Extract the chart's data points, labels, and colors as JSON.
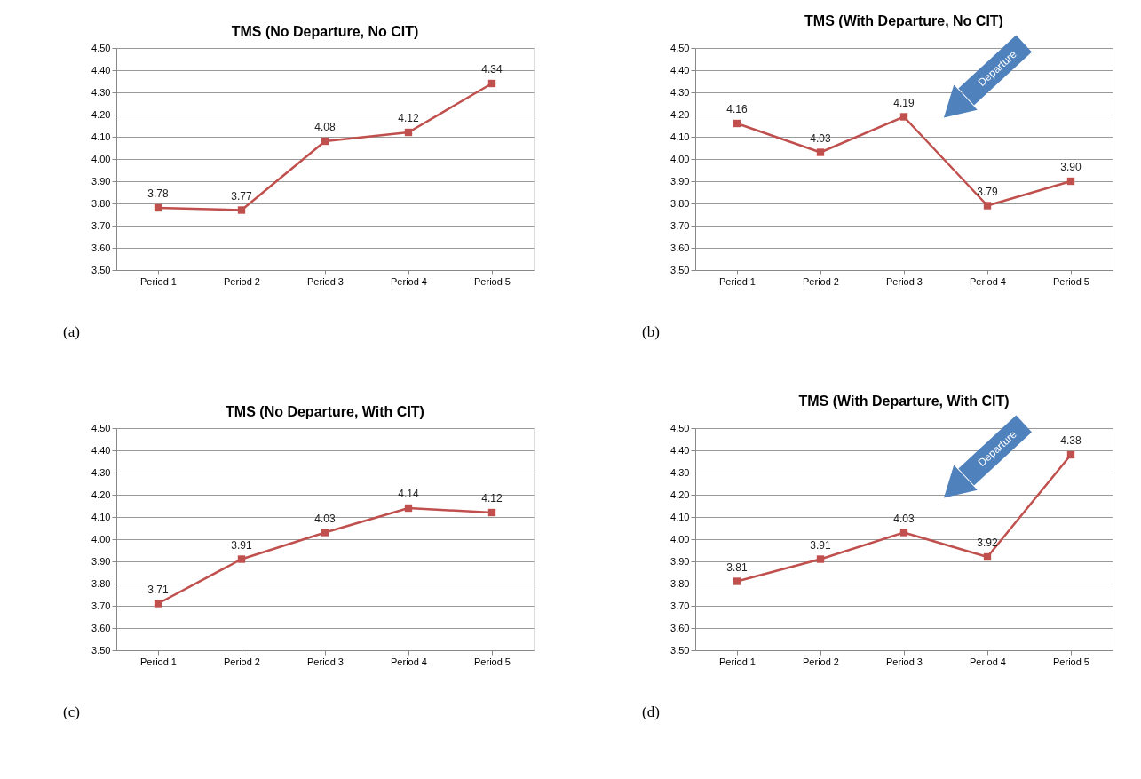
{
  "chart_data": [
    {
      "type": "line",
      "title": "TMS (No Departure, No CIT)",
      "categories": [
        "Period 1",
        "Period 2",
        "Period 3",
        "Period 4",
        "Period 5"
      ],
      "series": [
        {
          "color": "#c0504d",
          "values": [
            3.78,
            3.77,
            4.08,
            4.12,
            4.34
          ],
          "value_labels": [
            "3.78",
            "3.77",
            "4.08",
            "4.12",
            "4.34"
          ]
        }
      ],
      "ylim": [
        3.5,
        4.5
      ],
      "yticks": [
        {
          "value": 3.5,
          "label": "3.50"
        },
        {
          "value": 3.6,
          "label": "3.60"
        },
        {
          "value": 3.7,
          "label": "3.70"
        },
        {
          "value": 3.8,
          "label": "3.80"
        },
        {
          "value": 3.9,
          "label": "3.90"
        },
        {
          "value": 4.0,
          "label": "4.00"
        },
        {
          "value": 4.1,
          "label": "4.10"
        },
        {
          "value": 4.2,
          "label": "4.20"
        },
        {
          "value": 4.3,
          "label": "4.30"
        },
        {
          "value": 4.4,
          "label": "4.40"
        },
        {
          "value": 4.5,
          "label": "4.50"
        }
      ],
      "grid": "y",
      "marker": "square",
      "line_style": "solid",
      "legend": false,
      "annotations": [
        "(a)"
      ]
    },
    {
      "type": "line",
      "title": "TMS (With Departure, No CIT)",
      "categories": [
        "Period 1",
        "Period 2",
        "Period 3",
        "Period 4",
        "Period 5"
      ],
      "series": [
        {
          "color": "#c0504d",
          "values": [
            4.16,
            4.03,
            4.19,
            3.79,
            3.9
          ],
          "value_labels": [
            "4.16",
            "4.03",
            "4.19",
            "3.79",
            "3.90"
          ]
        }
      ],
      "ylim": [
        3.5,
        4.5
      ],
      "yticks": [
        {
          "value": 3.5,
          "label": "3.50"
        },
        {
          "value": 3.6,
          "label": "3.60"
        },
        {
          "value": 3.7,
          "label": "3.70"
        },
        {
          "value": 3.8,
          "label": "3.80"
        },
        {
          "value": 3.9,
          "label": "3.90"
        },
        {
          "value": 4.0,
          "label": "4.00"
        },
        {
          "value": 4.1,
          "label": "4.10"
        },
        {
          "value": 4.2,
          "label": "4.20"
        },
        {
          "value": 4.3,
          "label": "4.30"
        },
        {
          "value": 4.4,
          "label": "4.40"
        },
        {
          "value": 4.5,
          "label": "4.50"
        }
      ],
      "grid": "y",
      "marker": "square",
      "line_style": "solid",
      "legend": false,
      "annotations": [
        "(b)",
        "Departure"
      ]
    },
    {
      "type": "line",
      "title": "TMS (No Departure, With CIT)",
      "categories": [
        "Period 1",
        "Period 2",
        "Period 3",
        "Period 4",
        "Period 5"
      ],
      "series": [
        {
          "color": "#c0504d",
          "values": [
            3.71,
            3.91,
            4.03,
            4.14,
            4.12
          ],
          "value_labels": [
            "3.71",
            "3.91",
            "4.03",
            "4.14",
            "4.12"
          ]
        }
      ],
      "ylim": [
        3.5,
        4.5
      ],
      "yticks": [
        {
          "value": 3.5,
          "label": "3.50"
        },
        {
          "value": 3.6,
          "label": "3.60"
        },
        {
          "value": 3.7,
          "label": "3.70"
        },
        {
          "value": 3.8,
          "label": "3.80"
        },
        {
          "value": 3.9,
          "label": "3.90"
        },
        {
          "value": 4.0,
          "label": "4.00"
        },
        {
          "value": 4.1,
          "label": "4.10"
        },
        {
          "value": 4.2,
          "label": "4.20"
        },
        {
          "value": 4.3,
          "label": "4.30"
        },
        {
          "value": 4.4,
          "label": "4.40"
        },
        {
          "value": 4.5,
          "label": "4.50"
        }
      ],
      "grid": "y",
      "marker": "square",
      "line_style": "solid",
      "legend": false,
      "annotations": [
        "(c)"
      ]
    },
    {
      "type": "line",
      "title": "TMS (With Departure, With CIT)",
      "categories": [
        "Period 1",
        "Period 2",
        "Period 3",
        "Period 4",
        "Period 5"
      ],
      "series": [
        {
          "color": "#c0504d",
          "values": [
            3.81,
            3.91,
            4.03,
            3.92,
            4.38
          ],
          "value_labels": [
            "3.81",
            "3.91",
            "4.03",
            "3.92",
            "4.38"
          ]
        }
      ],
      "ylim": [
        3.5,
        4.5
      ],
      "yticks": [
        {
          "value": 3.5,
          "label": "3.50"
        },
        {
          "value": 3.6,
          "label": "3.60"
        },
        {
          "value": 3.7,
          "label": "3.70"
        },
        {
          "value": 3.8,
          "label": "3.80"
        },
        {
          "value": 3.9,
          "label": "3.90"
        },
        {
          "value": 4.0,
          "label": "4.00"
        },
        {
          "value": 4.1,
          "label": "4.10"
        },
        {
          "value": 4.2,
          "label": "4.20"
        },
        {
          "value": 4.3,
          "label": "4.30"
        },
        {
          "value": 4.4,
          "label": "4.40"
        },
        {
          "value": 4.5,
          "label": "4.50"
        }
      ],
      "grid": "y",
      "marker": "square",
      "line_style": "solid",
      "legend": false,
      "annotations": [
        "(d)",
        "Departure"
      ]
    }
  ]
}
